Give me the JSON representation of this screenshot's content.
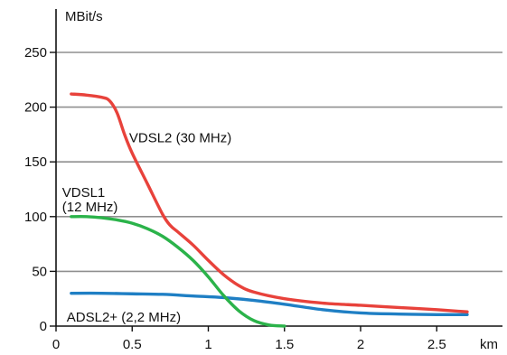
{
  "chart_data": {
    "type": "line",
    "title": "",
    "xlabel": "km",
    "ylabel": "MBit/s",
    "xlim": [
      0,
      3
    ],
    "ylim": [
      0,
      250
    ],
    "grid": "horizontal",
    "x_ticks": [
      0,
      0.5,
      1,
      1.5,
      2,
      2.5
    ],
    "x_tick_labels": [
      "0",
      "0.5",
      "1",
      "1.5",
      "2",
      "2.5"
    ],
    "y_ticks": [
      0,
      50,
      100,
      150,
      200,
      250
    ],
    "y_tick_labels": [
      "0",
      "50",
      "100",
      "150",
      "200",
      "250"
    ],
    "series": [
      {
        "name": "VDSL2 (30 MHz)",
        "color": "#e8423b",
        "x": [
          0.1,
          0.2,
          0.3,
          0.35,
          0.4,
          0.45,
          0.5,
          0.6,
          0.7,
          0.75,
          0.8,
          0.9,
          1.0,
          1.1,
          1.2,
          1.3,
          1.5,
          1.75,
          2.0,
          2.25,
          2.5,
          2.7
        ],
        "values": [
          212,
          211,
          209,
          206,
          195,
          175,
          158,
          130,
          102,
          92,
          86,
          74,
          60,
          47,
          37,
          31,
          25,
          21,
          19,
          17,
          15,
          13
        ]
      },
      {
        "name": "VDSL1 (12 MHz)",
        "color": "#2bb34a",
        "x": [
          0.1,
          0.2,
          0.3,
          0.4,
          0.5,
          0.6,
          0.7,
          0.8,
          0.9,
          1.0,
          1.1,
          1.2,
          1.3,
          1.4,
          1.5
        ],
        "values": [
          100,
          100,
          99,
          97,
          94,
          89,
          82,
          72,
          60,
          45,
          28,
          14,
          5,
          1,
          0
        ]
      },
      {
        "name": "ADSL2+ (2,2 MHz)",
        "color": "#1f7fc4",
        "x": [
          0.1,
          0.3,
          0.5,
          0.7,
          0.9,
          1.1,
          1.3,
          1.5,
          1.75,
          2.0,
          2.25,
          2.5,
          2.7
        ],
        "values": [
          30,
          30,
          29.5,
          29,
          27.5,
          26,
          23.5,
          20,
          15,
          12,
          11,
          10.5,
          10.5
        ]
      }
    ],
    "series_labels": [
      {
        "lines": [
          "VDSL2 (30 MHz)"
        ],
        "x": 0.48,
        "y": 168,
        "anchor": "start"
      },
      {
        "lines": [
          "VDSL1",
          "(12 MHz)"
        ],
        "x": 0.04,
        "y": 118,
        "anchor": "start"
      },
      {
        "lines": [
          "ADSL2+ (2,2 MHz)"
        ],
        "x": 0.07,
        "y": 4,
        "anchor": "start"
      }
    ]
  }
}
